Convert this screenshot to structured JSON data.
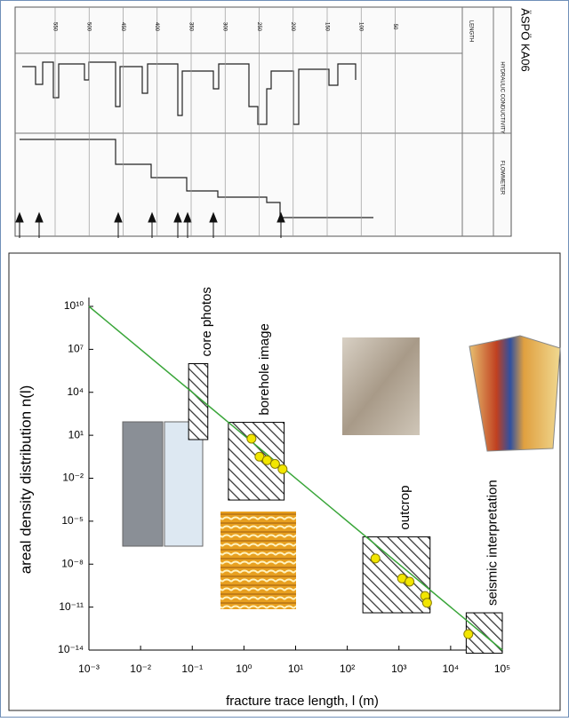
{
  "log": {
    "title": "ÄSPÖ KA06",
    "length_label": "LENGTH",
    "conductivity_label": "HYDRAULIC CONDUCTIVITY",
    "flowmeter_label": "FLOWMETER",
    "length_ticks": [
      550,
      500,
      450,
      400,
      350,
      300,
      250,
      200,
      150,
      100,
      50
    ]
  },
  "chart_data": {
    "type": "scatter",
    "x_label": "fracture trace length, l (m)",
    "y_label": "areal density distribution n(l)",
    "log_x": true,
    "log_y": true,
    "xlim": [
      0.001,
      100000
    ],
    "ylim": [
      1e-14,
      10000000000
    ],
    "xticks": [
      {
        "value": 0.001,
        "label": "10⁻³"
      },
      {
        "value": 0.01,
        "label": "10⁻²"
      },
      {
        "value": 0.1,
        "label": "10⁻¹"
      },
      {
        "value": 1,
        "label": "10⁰"
      },
      {
        "value": 10,
        "label": "10¹"
      },
      {
        "value": 100,
        "label": "10²"
      },
      {
        "value": 1000,
        "label": "10³"
      },
      {
        "value": 10000,
        "label": "10⁴"
      },
      {
        "value": 100000,
        "label": "10⁵"
      }
    ],
    "yticks": [
      {
        "value": 10000000000,
        "label": "10¹⁰"
      },
      {
        "value": 10000000,
        "label": "10⁷"
      },
      {
        "value": 10000,
        "label": "10⁴"
      },
      {
        "value": 10,
        "label": "10¹"
      },
      {
        "value": 0.01,
        "label": "10⁻²"
      },
      {
        "value": 1e-05,
        "label": "10⁻⁵"
      },
      {
        "value": 1e-08,
        "label": "10⁻⁸"
      },
      {
        "value": 1e-11,
        "label": "10⁻¹¹"
      },
      {
        "value": 1e-14,
        "label": "10⁻¹⁴"
      }
    ],
    "trend": {
      "color": "#3aa63a",
      "x": [
        0.001,
        100000
      ],
      "values": [
        10000000000,
        1e-14
      ]
    },
    "points": {
      "color": "#f2e600",
      "x": [
        1.4,
        2,
        2.8,
        4,
        5.6,
        350,
        1150,
        1600,
        3200,
        3500,
        22000
      ],
      "values": [
        5.8,
        0.32,
        0.18,
        0.1,
        0.043,
        2.5e-08,
        1e-09,
        6e-10,
        6e-11,
        2e-11,
        1.3e-13
      ]
    },
    "regions": [
      {
        "name": "core photos",
        "x": [
          0.085,
          0.2
        ],
        "y": [
          1000000,
          5
        ]
      },
      {
        "name": "borehole image",
        "x": [
          0.5,
          6
        ],
        "y": [
          80,
          0.0003
        ]
      },
      {
        "name": "outcrop",
        "x": [
          200,
          4000
        ],
        "y": [
          8e-07,
          4e-12
        ]
      },
      {
        "name": "seismic interpretation",
        "x": [
          20000,
          100000
        ],
        "y": [
          4e-12,
          6e-15
        ]
      }
    ]
  }
}
